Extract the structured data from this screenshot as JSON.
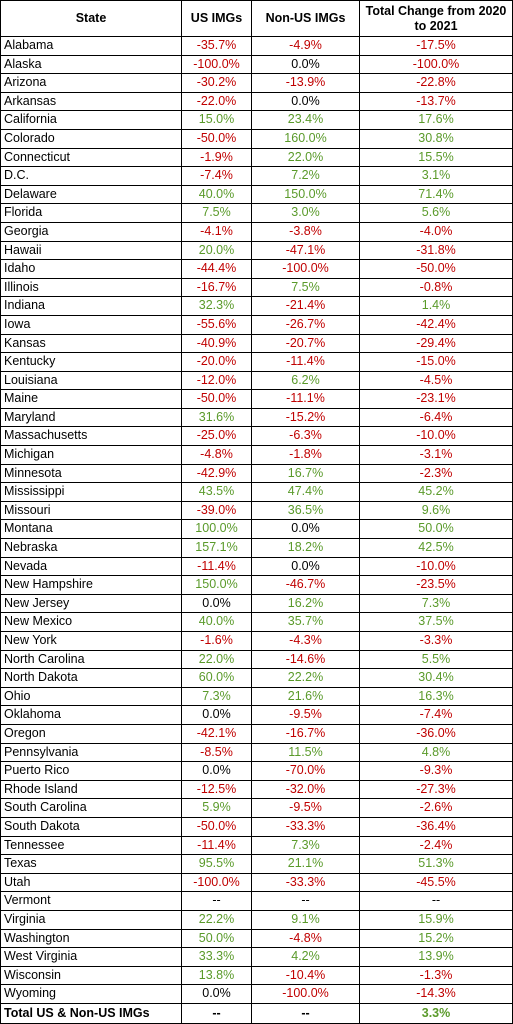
{
  "table": {
    "headers": [
      "State",
      "US IMGs",
      "Non-US IMGs",
      "Total Change from 2020 to 2021"
    ],
    "rows": [
      [
        "Alabama",
        "-35.7%",
        "-4.9%",
        "-17.5%"
      ],
      [
        "Alaska",
        "-100.0%",
        "0.0%",
        "-100.0%"
      ],
      [
        "Arizona",
        "-30.2%",
        "-13.9%",
        "-22.8%"
      ],
      [
        "Arkansas",
        "-22.0%",
        "0.0%",
        "-13.7%"
      ],
      [
        "California",
        "15.0%",
        "23.4%",
        "17.6%"
      ],
      [
        "Colorado",
        "-50.0%",
        "160.0%",
        "30.8%"
      ],
      [
        "Connecticut",
        "-1.9%",
        "22.0%",
        "15.5%"
      ],
      [
        "D.C.",
        "-7.4%",
        "7.2%",
        "3.1%"
      ],
      [
        "Delaware",
        "40.0%",
        "150.0%",
        "71.4%"
      ],
      [
        "Florida",
        "7.5%",
        "3.0%",
        "5.6%"
      ],
      [
        "Georgia",
        "-4.1%",
        "-3.8%",
        "-4.0%"
      ],
      [
        "Hawaii",
        "20.0%",
        "-47.1%",
        "-31.8%"
      ],
      [
        "Idaho",
        "-44.4%",
        "-100.0%",
        "-50.0%"
      ],
      [
        "Illinois",
        "-16.7%",
        "7.5%",
        "-0.8%"
      ],
      [
        "Indiana",
        "32.3%",
        "-21.4%",
        "1.4%"
      ],
      [
        "Iowa",
        "-55.6%",
        "-26.7%",
        "-42.4%"
      ],
      [
        "Kansas",
        "-40.9%",
        "-20.7%",
        "-29.4%"
      ],
      [
        "Kentucky",
        "-20.0%",
        "-11.4%",
        "-15.0%"
      ],
      [
        "Louisiana",
        "-12.0%",
        "6.2%",
        "-4.5%"
      ],
      [
        "Maine",
        "-50.0%",
        "-11.1%",
        "-23.1%"
      ],
      [
        "Maryland",
        "31.6%",
        "-15.2%",
        "-6.4%"
      ],
      [
        "Massachusetts",
        "-25.0%",
        "-6.3%",
        "-10.0%"
      ],
      [
        "Michigan",
        "-4.8%",
        "-1.8%",
        "-3.1%"
      ],
      [
        "Minnesota",
        "-42.9%",
        "16.7%",
        "-2.3%"
      ],
      [
        "Mississippi",
        "43.5%",
        "47.4%",
        "45.2%"
      ],
      [
        "Missouri",
        "-39.0%",
        "36.5%",
        "9.6%"
      ],
      [
        "Montana",
        "100.0%",
        "0.0%",
        "50.0%"
      ],
      [
        "Nebraska",
        "157.1%",
        "18.2%",
        "42.5%"
      ],
      [
        "Nevada",
        "-11.4%",
        "0.0%",
        "-10.0%"
      ],
      [
        "New Hampshire",
        "150.0%",
        "-46.7%",
        "-23.5%"
      ],
      [
        "New Jersey",
        "0.0%",
        "16.2%",
        "7.3%"
      ],
      [
        "New Mexico",
        "40.0%",
        "35.7%",
        "37.5%"
      ],
      [
        "New York",
        "-1.6%",
        "-4.3%",
        "-3.3%"
      ],
      [
        "North Carolina",
        "22.0%",
        "-14.6%",
        "5.5%"
      ],
      [
        "North Dakota",
        "60.0%",
        "22.2%",
        "30.4%"
      ],
      [
        "Ohio",
        "7.3%",
        "21.6%",
        "16.3%"
      ],
      [
        "Oklahoma",
        "0.0%",
        "-9.5%",
        "-7.4%"
      ],
      [
        "Oregon",
        "-42.1%",
        "-16.7%",
        "-36.0%"
      ],
      [
        "Pennsylvania",
        "-8.5%",
        "11.5%",
        "4.8%"
      ],
      [
        "Puerto Rico",
        "0.0%",
        "-70.0%",
        "-9.3%"
      ],
      [
        "Rhode Island",
        "-12.5%",
        "-32.0%",
        "-27.3%"
      ],
      [
        "South Carolina",
        "5.9%",
        "-9.5%",
        "-2.6%"
      ],
      [
        "South Dakota",
        "-50.0%",
        "-33.3%",
        "-36.4%"
      ],
      [
        "Tennessee",
        "-11.4%",
        "7.3%",
        "-2.4%"
      ],
      [
        "Texas",
        "95.5%",
        "21.1%",
        "51.3%"
      ],
      [
        "Utah",
        "-100.0%",
        "-33.3%",
        "-45.5%"
      ],
      [
        "Vermont",
        "--",
        "--",
        "--"
      ],
      [
        "Virginia",
        "22.2%",
        "9.1%",
        "15.9%"
      ],
      [
        "Washington",
        "50.0%",
        "-4.8%",
        "15.2%"
      ],
      [
        "West Virginia",
        "33.3%",
        "4.2%",
        "13.9%"
      ],
      [
        "Wisconsin",
        "13.8%",
        "-10.4%",
        "-1.3%"
      ],
      [
        "Wyoming",
        "0.0%",
        "-100.0%",
        "-14.3%"
      ]
    ],
    "total": [
      "Total US & Non-US IMGs",
      "--",
      "--",
      "3.3%"
    ],
    "colors": {
      "negative": "#c00000",
      "positive": "#5a9a2a",
      "neutral": "#000000"
    }
  }
}
